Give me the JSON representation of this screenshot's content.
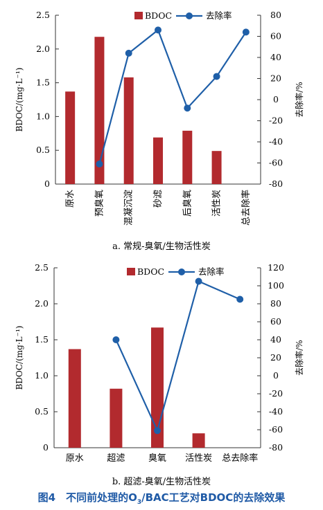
{
  "figure": {
    "caption_prefix": "图4　不同前处理的O",
    "caption_sub": "3",
    "caption_suffix": "/BAC工艺对BDOC的去除效果"
  },
  "chart_data": [
    {
      "type": "bar+line",
      "subtitle": "a. 常规-臭氧/生物活性炭",
      "categories": [
        "原水",
        "预臭氧",
        "混凝沉淀",
        "砂滤",
        "后臭氧",
        "活性炭",
        "总去除率"
      ],
      "y_left": {
        "label": "BDOC/(mg·L⁻¹)",
        "ylim": [
          0,
          2.5
        ],
        "ticks": [
          "0",
          "0.5",
          "1.0",
          "1.5",
          "2.0",
          "2.5"
        ]
      },
      "y_right": {
        "label": "去除率/%",
        "ylim": [
          -80,
          80
        ],
        "ticks": [
          "-80",
          "-60",
          "-40",
          "-20",
          "0",
          "20",
          "40",
          "60",
          "80"
        ]
      },
      "series": [
        {
          "name": "BDOC",
          "kind": "bar",
          "axis": "left",
          "color": "#b22a2e",
          "values": [
            1.37,
            2.18,
            1.58,
            0.69,
            0.79,
            0.49,
            null
          ]
        },
        {
          "name": "去除率",
          "kind": "line",
          "axis": "right",
          "color": "#1f5fa8",
          "values": [
            null,
            -61,
            44,
            66,
            -8,
            22,
            64
          ]
        }
      ],
      "legend": "top-center"
    },
    {
      "type": "bar+line",
      "subtitle": "b. 超滤-臭氧/生物活性炭",
      "categories": [
        "原水",
        "超滤",
        "臭氧",
        "活性炭",
        "总去除率"
      ],
      "y_left": {
        "label": "BDOC/(mg·L⁻¹)",
        "ylim": [
          0,
          2.5
        ],
        "ticks": [
          "0",
          "0.5",
          "1.0",
          "1.5",
          "2.0",
          "2.5"
        ]
      },
      "y_right": {
        "label": "去除率/%",
        "ylim": [
          -80,
          120
        ],
        "ticks": [
          "-80",
          "-60",
          "-40",
          "-20",
          "0",
          "20",
          "40",
          "60",
          "80",
          "100",
          "120"
        ]
      },
      "series": [
        {
          "name": "BDOC",
          "kind": "bar",
          "axis": "left",
          "color": "#b22a2e",
          "values": [
            1.37,
            0.82,
            1.67,
            0.2,
            null
          ]
        },
        {
          "name": "去除率",
          "kind": "line",
          "axis": "right",
          "color": "#1f5fa8",
          "values": [
            null,
            40,
            -61,
            105,
            85
          ]
        }
      ],
      "legend": "top-center"
    }
  ]
}
